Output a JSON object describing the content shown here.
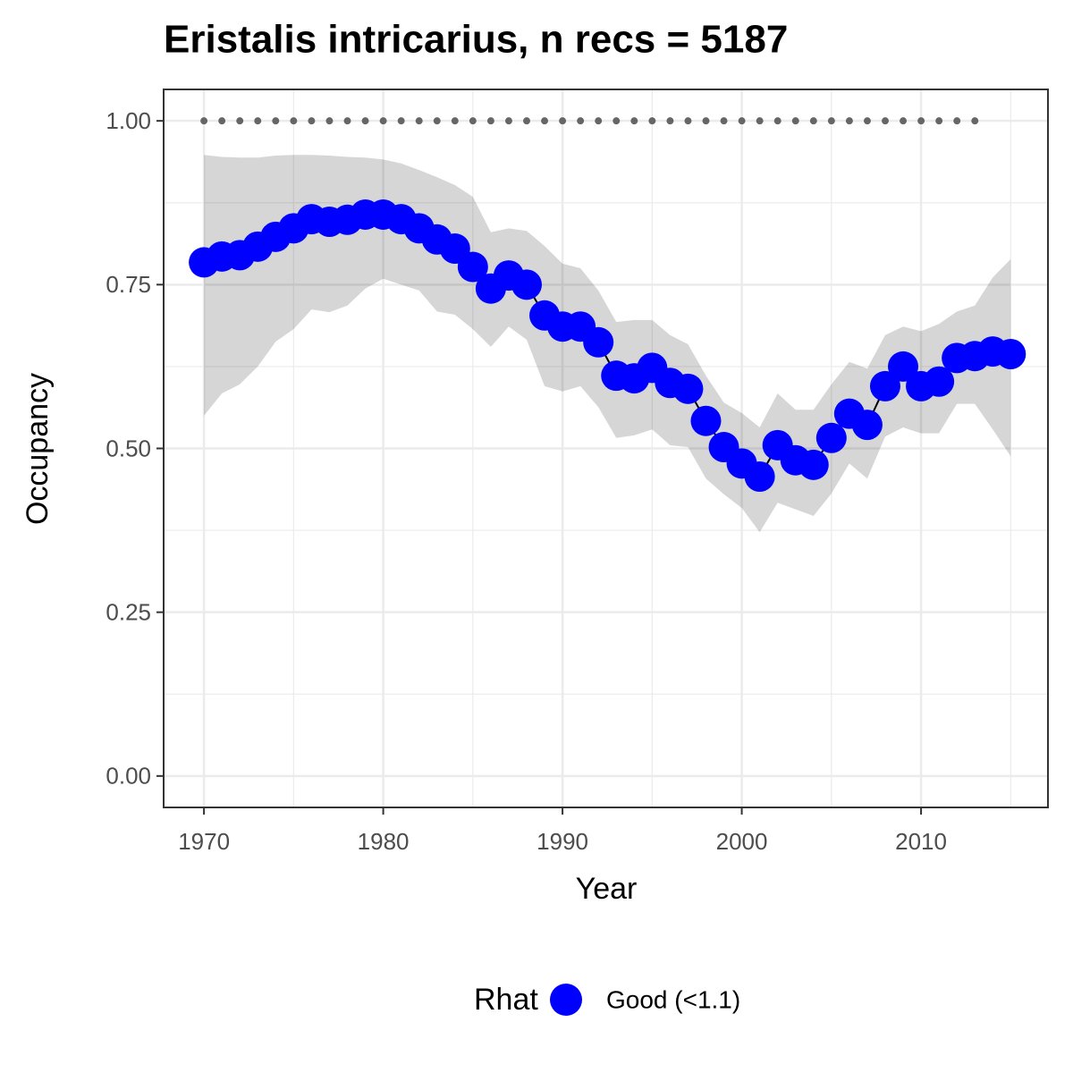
{
  "chart_data": {
    "type": "line",
    "title": "Eristalis intricarius, n recs = 5187",
    "xlabel": "Year",
    "ylabel": "Occupancy",
    "x": [
      1970,
      1971,
      1972,
      1973,
      1974,
      1975,
      1976,
      1977,
      1978,
      1979,
      1980,
      1981,
      1982,
      1983,
      1984,
      1985,
      1986,
      1987,
      1988,
      1989,
      1990,
      1991,
      1992,
      1993,
      1994,
      1995,
      1996,
      1997,
      1998,
      1999,
      2000,
      2001,
      2002,
      2003,
      2004,
      2005,
      2006,
      2007,
      2008,
      2009,
      2010,
      2011,
      2012,
      2013,
      2014,
      2015
    ],
    "series": [
      {
        "name": "Good (<1.1)",
        "color": "#0000ff",
        "values": [
          0.784,
          0.793,
          0.795,
          0.808,
          0.823,
          0.836,
          0.85,
          0.846,
          0.849,
          0.857,
          0.857,
          0.85,
          0.836,
          0.819,
          0.805,
          0.777,
          0.744,
          0.764,
          0.75,
          0.703,
          0.686,
          0.686,
          0.662,
          0.611,
          0.607,
          0.623,
          0.6,
          0.591,
          0.542,
          0.502,
          0.477,
          0.457,
          0.505,
          0.482,
          0.475,
          0.516,
          0.553,
          0.536,
          0.595,
          0.625,
          0.595,
          0.602,
          0.638,
          0.641,
          0.648,
          0.644
        ],
        "upper": [
          0.948,
          0.945,
          0.944,
          0.944,
          0.947,
          0.948,
          0.948,
          0.947,
          0.945,
          0.944,
          0.941,
          0.935,
          0.925,
          0.914,
          0.902,
          0.884,
          0.83,
          0.836,
          0.832,
          0.809,
          0.782,
          0.775,
          0.741,
          0.693,
          0.696,
          0.696,
          0.673,
          0.659,
          0.611,
          0.57,
          0.554,
          0.532,
          0.584,
          0.559,
          0.559,
          0.598,
          0.632,
          0.622,
          0.673,
          0.686,
          0.679,
          0.69,
          0.709,
          0.718,
          0.761,
          0.789
        ],
        "lower": [
          0.55,
          0.584,
          0.598,
          0.625,
          0.663,
          0.682,
          0.712,
          0.708,
          0.718,
          0.744,
          0.759,
          0.75,
          0.741,
          0.709,
          0.704,
          0.682,
          0.655,
          0.686,
          0.666,
          0.595,
          0.587,
          0.595,
          0.563,
          0.516,
          0.52,
          0.529,
          0.505,
          0.502,
          0.454,
          0.43,
          0.409,
          0.372,
          0.417,
          0.407,
          0.397,
          0.431,
          0.477,
          0.454,
          0.518,
          0.532,
          0.523,
          0.523,
          0.568,
          0.568,
          0.529,
          0.488
        ]
      }
    ],
    "reference_line": {
      "x": [
        1970,
        2014
      ],
      "values": [
        1,
        1
      ]
    },
    "legend_title": "Rhat",
    "legend": "bottom",
    "grid": true,
    "xlim": [
      1967.75,
      2017.08
    ],
    "xticks": [
      1970,
      1980,
      1990,
      2000,
      2010
    ],
    "ylim": [
      -0.048,
      1.048
    ],
    "yticks": [
      {
        "value": 0,
        "label": "0.00"
      },
      {
        "value": 0.25,
        "label": "0.25"
      },
      {
        "value": 0.5,
        "label": "0.50"
      },
      {
        "value": 0.75,
        "label": "0.75"
      },
      {
        "value": 1,
        "label": "1.00"
      }
    ]
  }
}
